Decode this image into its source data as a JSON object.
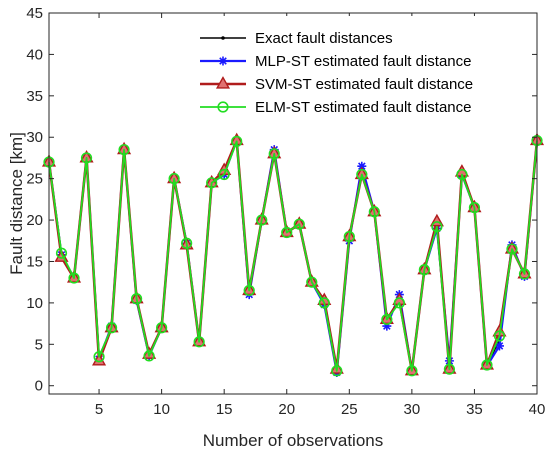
{
  "chart_data": {
    "type": "line",
    "title": "",
    "xlabel": "Number of observations",
    "ylabel": "Fault distance [km]",
    "xlim": [
      1,
      40
    ],
    "ylim": [
      -1,
      45
    ],
    "xticks": [
      5,
      10,
      15,
      20,
      25,
      30,
      35,
      40
    ],
    "yticks": [
      0,
      5,
      10,
      15,
      20,
      25,
      30,
      35,
      40,
      45
    ],
    "grid": false,
    "legend_position": "top-right",
    "x": [
      1,
      2,
      3,
      4,
      5,
      6,
      7,
      8,
      9,
      10,
      11,
      12,
      13,
      14,
      15,
      16,
      17,
      18,
      19,
      20,
      21,
      22,
      23,
      24,
      25,
      26,
      27,
      28,
      29,
      30,
      31,
      32,
      33,
      34,
      35,
      36,
      37,
      38,
      39,
      40
    ],
    "series": [
      {
        "name": "Exact fault distances",
        "color": "#000000",
        "marker": "dot",
        "values": [
          27,
          15.5,
          13,
          27.5,
          3.5,
          7,
          28.5,
          10.5,
          3.8,
          7,
          25,
          17,
          5.3,
          24.5,
          25.5,
          29.5,
          11.5,
          20,
          28,
          18.5,
          19.5,
          12.5,
          10,
          2,
          18,
          25.5,
          21,
          8,
          10.5,
          2,
          14,
          19,
          2.5,
          25.5,
          21.5,
          2.5,
          5.5,
          16.5,
          13.5,
          29.5
        ]
      },
      {
        "name": "MLP-ST estimated fault distance",
        "color": "#1a1aff",
        "marker": "star",
        "values": [
          27,
          15.8,
          13,
          27.5,
          3.2,
          7.2,
          28.5,
          10.3,
          3.6,
          7,
          25,
          17.2,
          5.3,
          24.5,
          25.5,
          29.6,
          11,
          20,
          28.5,
          18.5,
          19.5,
          12.5,
          9.8,
          1.6,
          17.5,
          26.5,
          21,
          7.2,
          11,
          1.8,
          14,
          19,
          3,
          25.5,
          21.5,
          2.4,
          4.8,
          17,
          13.2,
          29.6
        ]
      },
      {
        "name": "SVM-ST estimated fault distance",
        "color": "#b01c1c",
        "marker": "triangle",
        "values": [
          27,
          15.5,
          13,
          27.5,
          3,
          7,
          28.5,
          10.5,
          3.8,
          7,
          25,
          17,
          5.3,
          24.5,
          26,
          29.6,
          11.5,
          20,
          28,
          18.5,
          19.5,
          12.5,
          10.3,
          2,
          18,
          25.5,
          21,
          8,
          10.3,
          1.8,
          14,
          19.8,
          2,
          25.8,
          21.5,
          2.5,
          6.5,
          16.5,
          13.5,
          29.6
        ]
      },
      {
        "name": "ELM-ST estimated fault distance",
        "color": "#22dd22",
        "marker": "circle",
        "values": [
          27,
          16,
          13,
          27.5,
          3.5,
          7,
          28.5,
          10.5,
          3.6,
          7,
          25,
          17.2,
          5.3,
          24.5,
          25.5,
          29.5,
          11.5,
          20,
          28,
          18.5,
          19.5,
          12.5,
          10,
          1.8,
          18,
          25.5,
          21,
          8,
          10,
          1.8,
          14,
          19.2,
          2,
          25.5,
          21.5,
          2.5,
          6,
          16.5,
          13.5,
          29.6
        ]
      }
    ]
  }
}
